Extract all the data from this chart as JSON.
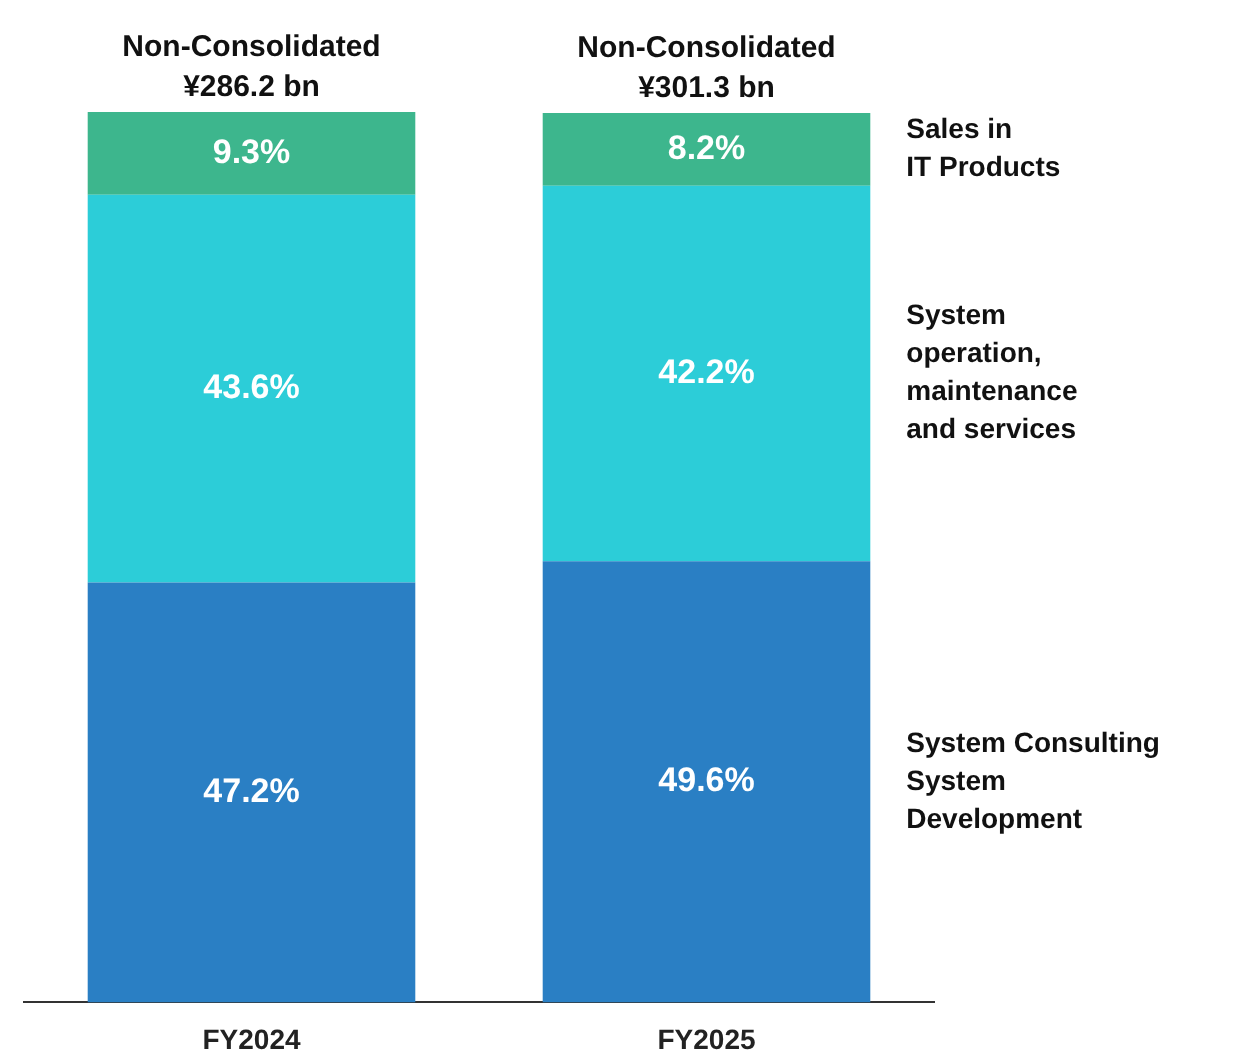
{
  "chart_data": {
    "type": "bar",
    "stacked": true,
    "categories": [
      "FY2024",
      "FY2025"
    ],
    "series": [
      {
        "name": "System Consulting\nSystem\nDevelopment",
        "color": "#2a7fc4",
        "values": [
          47.2,
          49.6
        ],
        "value_labels": [
          "47.2%",
          "49.6%"
        ]
      },
      {
        "name": "System\noperation,\nmaintenance\nand services",
        "color": "#2ccdd8",
        "values": [
          43.6,
          42.2
        ],
        "value_labels": [
          "43.6%",
          "42.2%"
        ]
      },
      {
        "name": "Sales in\nIT Products",
        "color": "#3db68d",
        "values": [
          9.3,
          8.2
        ],
        "value_labels": [
          "9.3%",
          "8.2%"
        ]
      }
    ],
    "totals": [
      "Non-Consolidated\n¥286.2 bn",
      "Non-Consolidated\n¥301.3 bn"
    ],
    "legend": false,
    "grid": false
  }
}
